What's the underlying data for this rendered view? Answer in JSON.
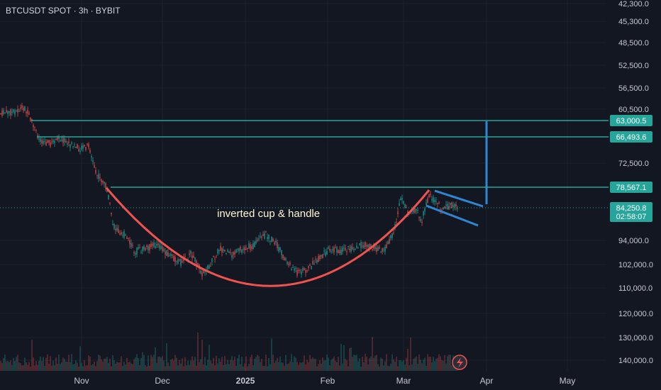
{
  "header": {
    "title": "BTCUSDT SPOT · 3h · BYBIT"
  },
  "annotation": {
    "text": "inverted cup & handle"
  },
  "colors": {
    "background": "#131722",
    "axis_text": "#c7c9d1",
    "grid": "#1c2130",
    "horizontal_line": "#26a69a",
    "cup_curve": "#ef5350",
    "handle_lines": "#2f86d2",
    "candle_up": "#26a69a",
    "candle_down": "#ef5350"
  },
  "chart_data": {
    "type": "candlestick",
    "y_axis_inverted": true,
    "y_scale": "linear",
    "y_ticks": [
      "42,300.0",
      "45,300.0",
      "48,500.0",
      "52,500.0",
      "56,500.0",
      "60,500.0",
      "72,500.0",
      "94,000.0",
      "102,000.0",
      "110,000.0",
      "120,000.0",
      "130,000.0",
      "140,000.0"
    ],
    "x_ticks": [
      "Nov",
      "Dec",
      "2025",
      "Feb",
      "Mar",
      "Apr",
      "May"
    ],
    "price_labels": [
      {
        "label": "63,000.5",
        "kind": "line"
      },
      {
        "label": "66,493.6",
        "kind": "line"
      },
      {
        "label": "78,567.1",
        "kind": "line"
      },
      {
        "label": "84,250.8",
        "kind": "current",
        "countdown": "02:58:07"
      }
    ],
    "approx_close_path": [
      {
        "date": "2024-10-18",
        "price": 60500
      },
      {
        "date": "2024-10-25",
        "price": 66000
      },
      {
        "date": "2024-11-05",
        "price": 70000
      },
      {
        "date": "2024-11-12",
        "price": 85000
      },
      {
        "date": "2024-11-22",
        "price": 97000
      },
      {
        "date": "2024-12-05",
        "price": 95000
      },
      {
        "date": "2024-12-17",
        "price": 104000
      },
      {
        "date": "2024-12-25",
        "price": 95000
      },
      {
        "date": "2025-01-07",
        "price": 90000
      },
      {
        "date": "2025-01-20",
        "price": 104000
      },
      {
        "date": "2025-01-30",
        "price": 102000
      },
      {
        "date": "2025-02-10",
        "price": 96000
      },
      {
        "date": "2025-02-25",
        "price": 88000
      },
      {
        "date": "2025-03-03",
        "price": 83000
      },
      {
        "date": "2025-03-10",
        "price": 80000
      },
      {
        "date": "2025-03-18",
        "price": 84250
      }
    ]
  }
}
